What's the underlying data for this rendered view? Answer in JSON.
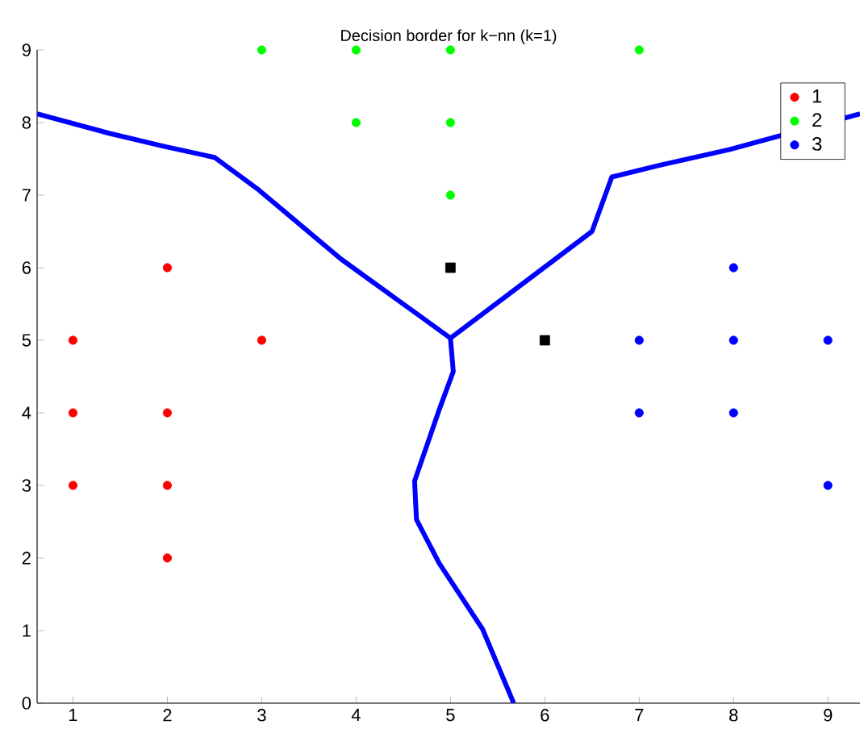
{
  "chart_data": {
    "type": "scatter",
    "title": "Decision border for k−nn (k=1)",
    "xlim": [
      0.62,
      9.34
    ],
    "ylim": [
      0,
      9
    ],
    "xticks": [
      1,
      2,
      3,
      4,
      5,
      6,
      7,
      8,
      9
    ],
    "yticks": [
      0,
      1,
      2,
      3,
      4,
      5,
      6,
      7,
      8,
      9
    ],
    "grid": false,
    "legend": "top right",
    "series": [
      {
        "name": "1",
        "color": "#ff0000",
        "marker": "circle",
        "x": [
          1,
          1,
          1,
          2,
          2,
          2,
          2,
          3
        ],
        "values": [
          5,
          4,
          3,
          6,
          4,
          3,
          2,
          5
        ]
      },
      {
        "name": "2",
        "color": "#00ff00",
        "marker": "circle",
        "x": [
          3,
          4,
          5,
          7,
          4,
          5,
          5
        ],
        "values": [
          9,
          9,
          9,
          9,
          8,
          8,
          7
        ]
      },
      {
        "name": "3",
        "color": "#0000ff",
        "marker": "circle",
        "x": [
          8,
          7,
          8,
          9,
          7,
          8,
          9
        ],
        "values": [
          6,
          5,
          5,
          5,
          4,
          4,
          3
        ]
      },
      {
        "color": "#000000",
        "marker": "square",
        "x": [
          5,
          6
        ],
        "values": [
          6,
          5
        ]
      },
      {
        "type": "line",
        "marker": "none",
        "color": "#0000ff",
        "x": [
          0.62,
          1.39,
          1.97,
          2.5,
          2.97,
          3.84,
          5.0
        ],
        "values": [
          8.12,
          7.85,
          7.67,
          7.52,
          7.07,
          6.12,
          5.03
        ]
      },
      {
        "type": "line",
        "marker": "none",
        "color": "#0000ff",
        "x": [
          5.0,
          6.5,
          6.71,
          7.21,
          7.96,
          9.34
        ],
        "values": [
          5.03,
          6.5,
          7.25,
          7.41,
          7.63,
          8.12
        ]
      },
      {
        "type": "line",
        "marker": "none",
        "color": "#0000ff",
        "x": [
          5.0,
          5.03,
          4.88,
          4.62,
          4.64,
          4.88,
          5.34,
          5.67
        ],
        "values": [
          5.03,
          4.57,
          4.04,
          3.06,
          2.53,
          1.93,
          1.02,
          0
        ]
      }
    ]
  }
}
